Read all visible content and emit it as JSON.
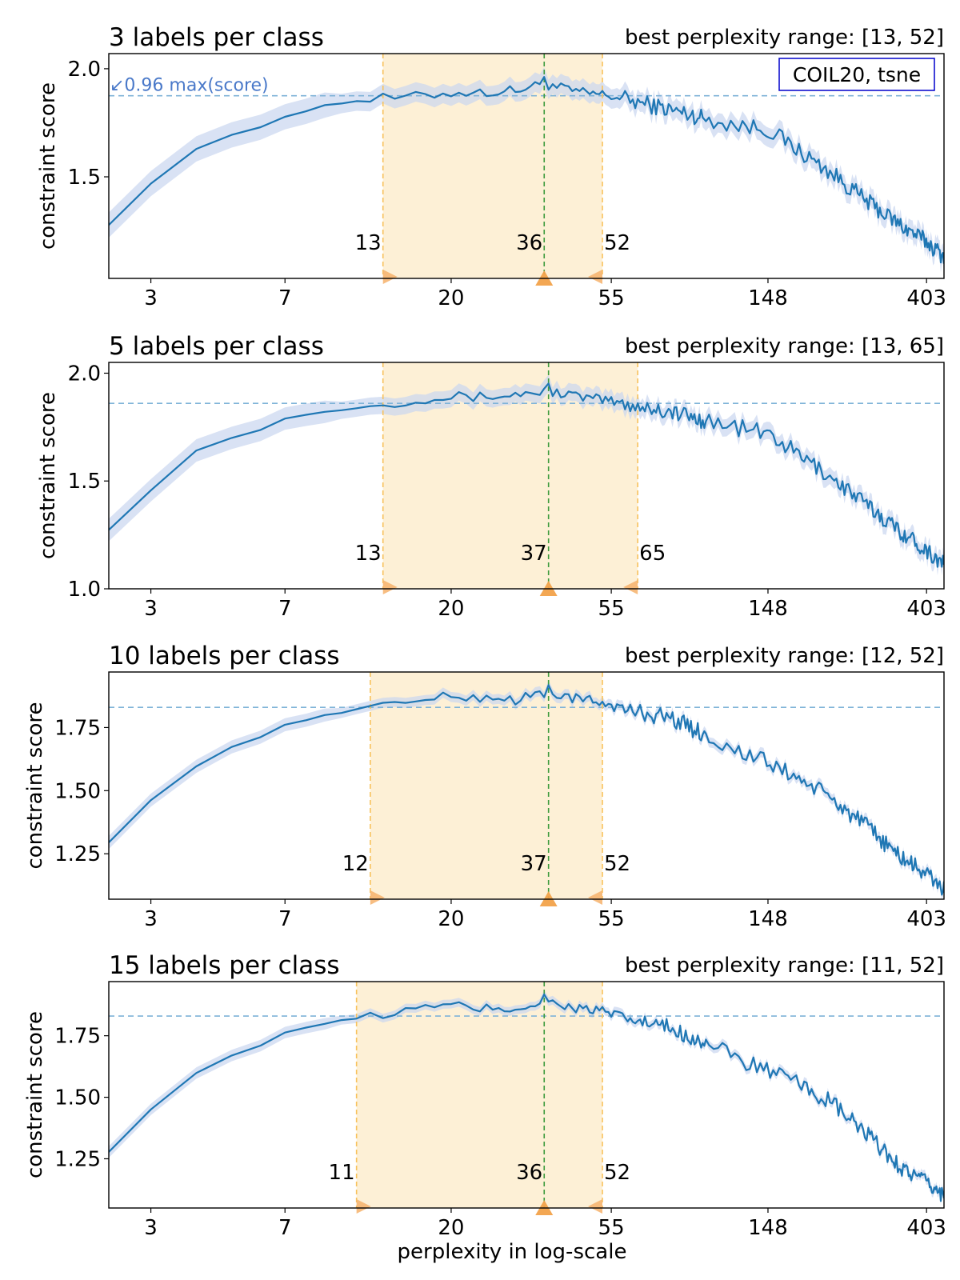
{
  "figure": {
    "xlabel": "perplexity in log-scale",
    "dataset_label": "COIL20, tsne",
    "threshold_annotation": "↙0.96 max(score)",
    "ylabel": "constraint score"
  },
  "colors": {
    "line": "#1f77b4",
    "band": "#c9d6ef",
    "range_fill": "#fdf0d6",
    "range_border": "#f8c25c",
    "threshold_line": "#7fb3d8",
    "best_line": "#3d9b3d",
    "marker": "#f6b26b",
    "best_marker": "#f2a24a",
    "annotation_text": "#4a79c9",
    "legend_border": "#0000cc"
  },
  "chart_data": [
    {
      "type": "line",
      "title": "3 labels per class",
      "subtitle": "best perplexity range: [13, 52]",
      "xlabel": "perplexity in log-scale",
      "ylabel": "constraint score",
      "x_scale": "log",
      "xlim": [
        2.3,
        450
      ],
      "ylim": [
        1.03,
        2.07
      ],
      "xticks": [
        3,
        7,
        20,
        55,
        148,
        403
      ],
      "yticks": [
        1.5,
        2.0
      ],
      "ytick_labels": [
        "1.5",
        "2.0"
      ],
      "threshold": 1.875,
      "best_range": [
        13,
        52
      ],
      "best_perplexity": 36,
      "range_labels": [
        "13",
        "36",
        "52"
      ],
      "noise_amp": 0.04,
      "band_width": 0.045,
      "anchors": {
        "x": [
          2.3,
          3,
          4,
          5,
          6,
          7,
          9,
          12,
          16,
          20,
          25,
          30,
          36,
          45,
          52,
          60,
          80,
          100,
          120,
          148,
          180,
          220,
          280,
          340,
          403,
          450
        ],
        "y": [
          1.18,
          1.47,
          1.63,
          1.69,
          1.73,
          1.78,
          1.83,
          1.86,
          1.87,
          1.89,
          1.89,
          1.9,
          1.93,
          1.89,
          1.88,
          1.86,
          1.81,
          1.77,
          1.74,
          1.72,
          1.62,
          1.52,
          1.38,
          1.28,
          1.2,
          1.13
        ]
      }
    },
    {
      "type": "line",
      "title": "5 labels per class",
      "subtitle": "best perplexity range: [13, 65]",
      "xlabel": "perplexity in log-scale",
      "ylabel": "constraint score",
      "x_scale": "log",
      "xlim": [
        2.3,
        450
      ],
      "ylim": [
        1.0,
        2.05
      ],
      "xticks": [
        3,
        7,
        20,
        55,
        148,
        403
      ],
      "yticks": [
        1.0,
        1.5,
        2.0
      ],
      "ytick_labels": [
        "1.0",
        "1.5",
        "2.0"
      ],
      "threshold": 1.86,
      "best_range": [
        13,
        65
      ],
      "best_perplexity": 37,
      "range_labels": [
        "13",
        "37",
        "65"
      ],
      "noise_amp": 0.04,
      "band_width": 0.04,
      "anchors": {
        "x": [
          2.3,
          3,
          4,
          5,
          6,
          7,
          9,
          12,
          16,
          20,
          25,
          30,
          37,
          45,
          55,
          65,
          80,
          100,
          120,
          148,
          180,
          220,
          280,
          340,
          403,
          450
        ],
        "y": [
          1.18,
          1.46,
          1.64,
          1.7,
          1.74,
          1.79,
          1.82,
          1.85,
          1.88,
          1.89,
          1.89,
          1.9,
          1.92,
          1.89,
          1.87,
          1.85,
          1.82,
          1.78,
          1.75,
          1.72,
          1.62,
          1.52,
          1.38,
          1.27,
          1.18,
          1.11
        ]
      }
    },
    {
      "type": "line",
      "title": "10 labels per class",
      "subtitle": "best perplexity range: [12, 52]",
      "xlabel": "perplexity in log-scale",
      "ylabel": "constraint score",
      "x_scale": "log",
      "xlim": [
        2.3,
        450
      ],
      "ylim": [
        1.07,
        1.97
      ],
      "xticks": [
        3,
        7,
        20,
        55,
        148,
        403
      ],
      "yticks": [
        1.25,
        1.5,
        1.75
      ],
      "ytick_labels": [
        "1.25",
        "1.50",
        "1.75"
      ],
      "threshold": 1.83,
      "best_range": [
        12,
        52
      ],
      "best_perplexity": 37,
      "range_labels": [
        "12",
        "37",
        "52"
      ],
      "noise_amp": 0.035,
      "band_width": 0.02,
      "anchors": {
        "x": [
          2.3,
          3,
          4,
          5,
          6,
          7,
          9,
          12,
          16,
          20,
          25,
          30,
          37,
          45,
          52,
          60,
          80,
          100,
          120,
          148,
          180,
          220,
          280,
          340,
          403,
          450
        ],
        "y": [
          1.21,
          1.46,
          1.6,
          1.67,
          1.71,
          1.76,
          1.8,
          1.83,
          1.86,
          1.87,
          1.87,
          1.86,
          1.89,
          1.86,
          1.85,
          1.82,
          1.79,
          1.72,
          1.66,
          1.61,
          1.55,
          1.47,
          1.35,
          1.24,
          1.17,
          1.11
        ]
      }
    },
    {
      "type": "line",
      "title": "15 labels per class",
      "subtitle": "best perplexity range: [11, 52]",
      "xlabel": "perplexity in log-scale",
      "ylabel": "constraint score",
      "x_scale": "log",
      "xlim": [
        2.3,
        450
      ],
      "ylim": [
        1.05,
        1.97
      ],
      "xticks": [
        3,
        7,
        20,
        55,
        148,
        403
      ],
      "yticks": [
        1.25,
        1.5,
        1.75
      ],
      "ytick_labels": [
        "1.25",
        "1.50",
        "1.75"
      ],
      "threshold": 1.83,
      "best_range": [
        11,
        52
      ],
      "best_perplexity": 36,
      "range_labels": [
        "11",
        "36",
        "52"
      ],
      "noise_amp": 0.035,
      "band_width": 0.018,
      "anchors": {
        "x": [
          2.3,
          3,
          4,
          5,
          6,
          7,
          9,
          11,
          16,
          20,
          25,
          30,
          36,
          45,
          52,
          60,
          80,
          100,
          120,
          148,
          180,
          220,
          280,
          340,
          403,
          450
        ],
        "y": [
          1.19,
          1.45,
          1.6,
          1.67,
          1.71,
          1.76,
          1.8,
          1.82,
          1.86,
          1.87,
          1.86,
          1.86,
          1.89,
          1.86,
          1.85,
          1.82,
          1.78,
          1.72,
          1.66,
          1.61,
          1.55,
          1.48,
          1.34,
          1.22,
          1.15,
          1.1
        ]
      }
    }
  ]
}
